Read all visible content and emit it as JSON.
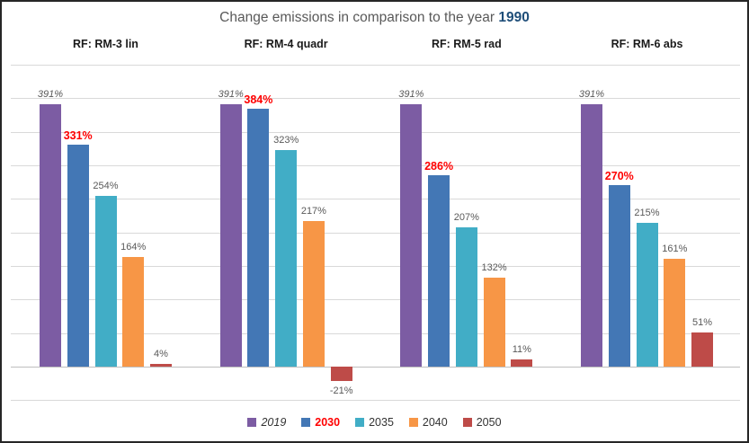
{
  "header": {
    "title_prefix": "Change emissions in comparison to the year ",
    "title_year": "1990"
  },
  "colors": {
    "title_gray": "#595959",
    "year_blue": "#1F4E79",
    "label_gray": "#595959",
    "label_red": "#FF0000",
    "gridline": "#D9D9D9",
    "zero_axis": "#BFBFBF",
    "border": "#262626"
  },
  "chart_data": {
    "type": "bar",
    "title": "Change emissions in comparison to the year 1990",
    "value_suffix": "%",
    "ylim": [
      -50,
      450
    ],
    "grid_step": 50,
    "grid": true,
    "legend_position": "bottom",
    "series": [
      {
        "year": "2019",
        "color": "#7C5CA3",
        "label_style": "italic"
      },
      {
        "year": "2030",
        "color": "#4377B5",
        "label_style": "bold-red"
      },
      {
        "year": "2035",
        "color": "#41ADC6",
        "label_style": "normal"
      },
      {
        "year": "2040",
        "color": "#F79646",
        "label_style": "normal"
      },
      {
        "year": "2050",
        "color": "#BE4B48",
        "label_style": "normal"
      }
    ],
    "panels": [
      {
        "label": "RF: RM-3 lin",
        "values": [
          391,
          331,
          254,
          164,
          4
        ]
      },
      {
        "label": "RF: RM-4 quadr",
        "values": [
          391,
          384,
          323,
          217,
          -21
        ]
      },
      {
        "label": "RF: RM-5 rad",
        "values": [
          391,
          286,
          207,
          132,
          11
        ]
      },
      {
        "label": "RF: RM-6 abs",
        "values": [
          391,
          270,
          215,
          161,
          51
        ]
      }
    ]
  }
}
